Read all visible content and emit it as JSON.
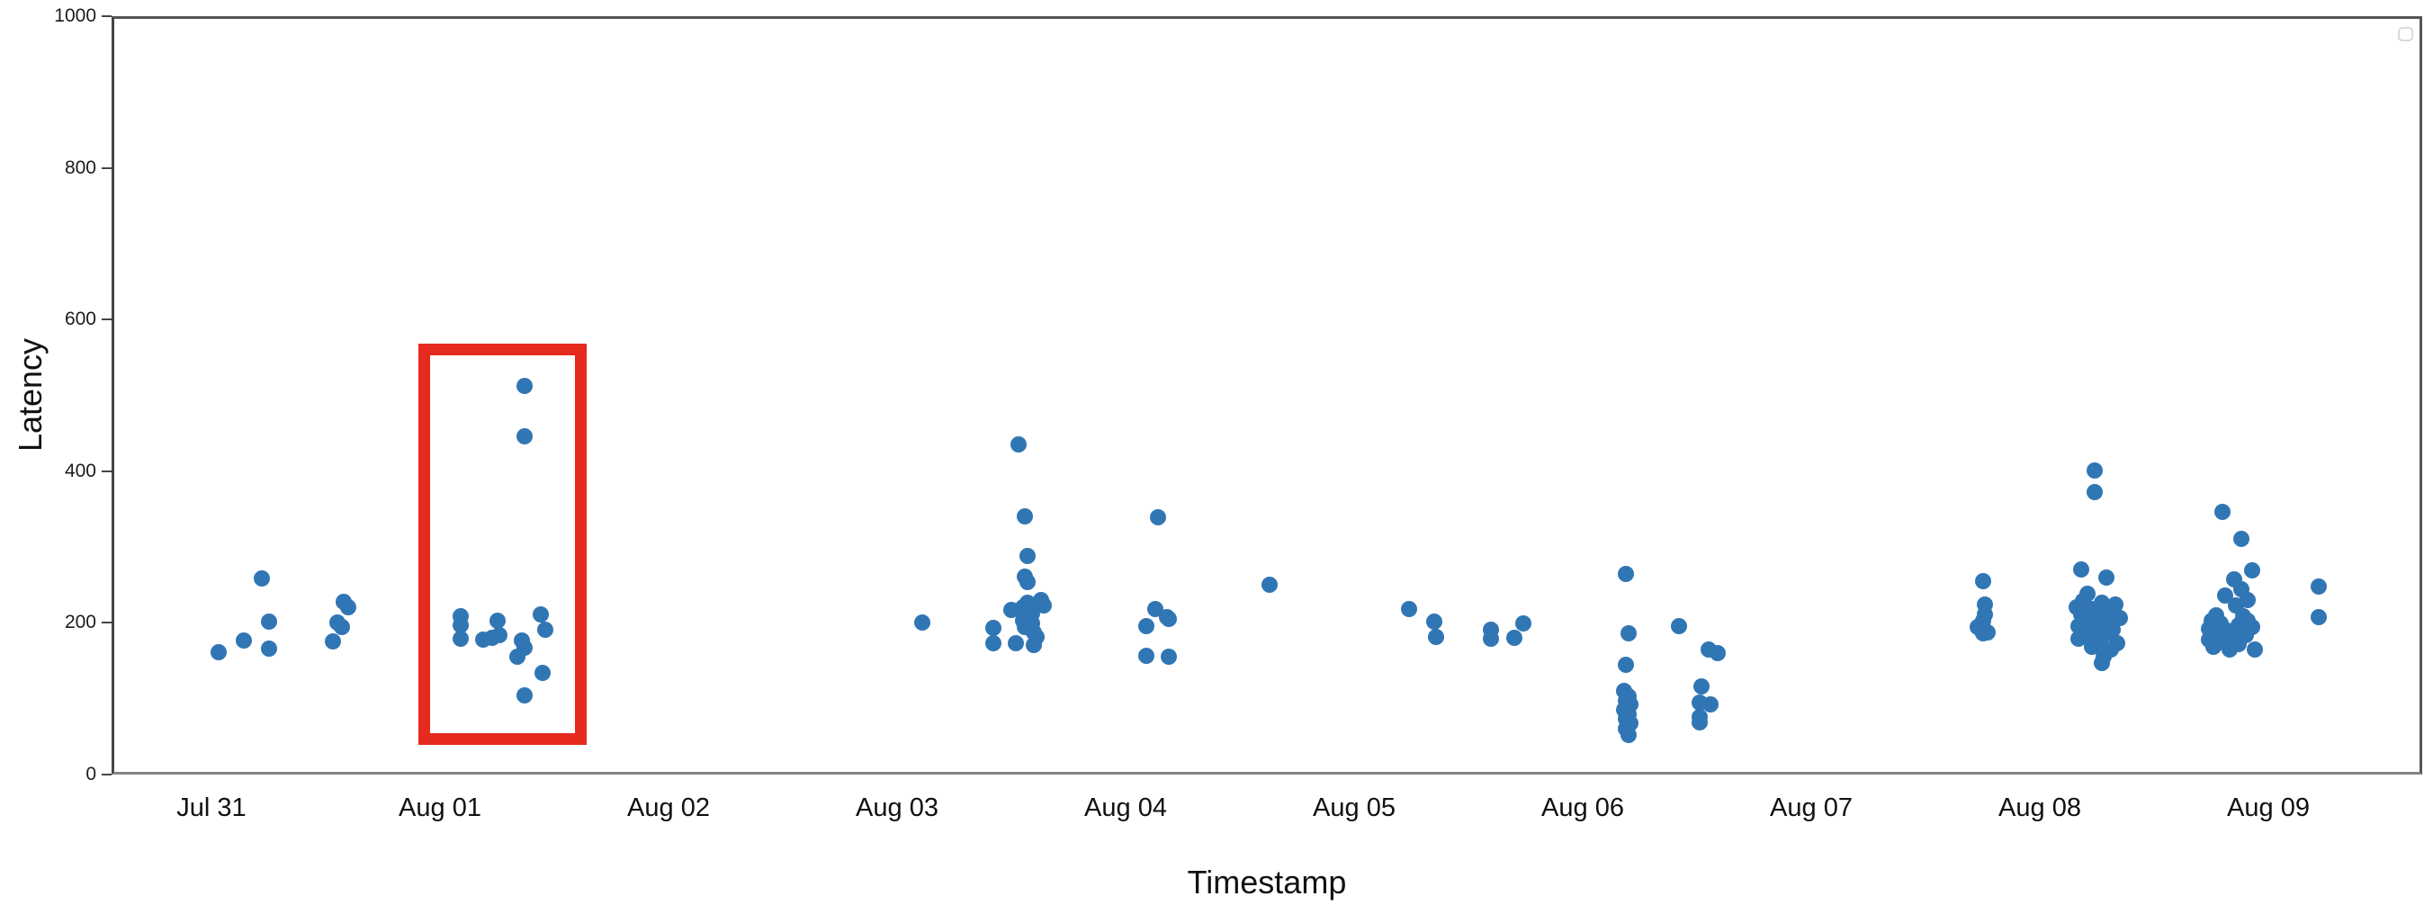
{
  "chart_data": {
    "type": "scatter",
    "title": "",
    "xlabel": "Timestamp",
    "ylabel": "Latency",
    "x_tick_labels": [
      "Jul 31",
      "Aug 01",
      "Aug 02",
      "Aug 03",
      "Aug 04",
      "Aug 05",
      "Aug 06",
      "Aug 07",
      "Aug 08",
      "Aug 09"
    ],
    "y_ticks": [
      0,
      200,
      400,
      600,
      800,
      1000
    ],
    "ylim": [
      0,
      1000
    ],
    "xlim_days_from_jul31": [
      -0.44,
      9.67
    ],
    "grid": "off",
    "legend": "empty box, upper right",
    "marker_color": "#3176b4",
    "highlight_color": "#e72a1e",
    "highlight_region": {
      "day_start": 0.905,
      "day_end": 1.64,
      "latency_min": 39,
      "latency_max": 568
    },
    "points_days_latency": [
      [
        0.03,
        161
      ],
      [
        0.14,
        177
      ],
      [
        0.22,
        259
      ],
      [
        0.25,
        202
      ],
      [
        0.25,
        166
      ],
      [
        0.53,
        176
      ],
      [
        0.55,
        200
      ],
      [
        0.57,
        195
      ],
      [
        0.58,
        228
      ],
      [
        0.6,
        221
      ],
      [
        1.37,
        512
      ],
      [
        1.37,
        446
      ],
      [
        1.09,
        209
      ],
      [
        1.09,
        197
      ],
      [
        1.09,
        179
      ],
      [
        1.19,
        178
      ],
      [
        1.23,
        180
      ],
      [
        1.25,
        203
      ],
      [
        1.26,
        184
      ],
      [
        1.36,
        177
      ],
      [
        1.37,
        167
      ],
      [
        1.34,
        155
      ],
      [
        1.44,
        211
      ],
      [
        1.46,
        191
      ],
      [
        1.45,
        134
      ],
      [
        1.37,
        104
      ],
      [
        3.11,
        200
      ],
      [
        3.53,
        435
      ],
      [
        3.56,
        340
      ],
      [
        3.57,
        288
      ],
      [
        3.56,
        261
      ],
      [
        3.57,
        254
      ],
      [
        3.63,
        230
      ],
      [
        3.64,
        223
      ],
      [
        3.57,
        227
      ],
      [
        3.55,
        221
      ],
      [
        3.5,
        217
      ],
      [
        3.59,
        212
      ],
      [
        3.55,
        203
      ],
      [
        3.59,
        199
      ],
      [
        3.56,
        195
      ],
      [
        3.6,
        187
      ],
      [
        3.61,
        181
      ],
      [
        3.42,
        193
      ],
      [
        3.42,
        173
      ],
      [
        3.52,
        173
      ],
      [
        3.6,
        171
      ],
      [
        4.14,
        339
      ],
      [
        4.13,
        218
      ],
      [
        4.18,
        208
      ],
      [
        4.19,
        205
      ],
      [
        4.09,
        196
      ],
      [
        4.09,
        157
      ],
      [
        4.19,
        155
      ],
      [
        4.63,
        250
      ],
      [
        5.24,
        218
      ],
      [
        5.35,
        202
      ],
      [
        5.36,
        181
      ],
      [
        5.6,
        191
      ],
      [
        5.6,
        179
      ],
      [
        5.7,
        180
      ],
      [
        5.74,
        199
      ],
      [
        6.19,
        265
      ],
      [
        6.2,
        186
      ],
      [
        6.19,
        145
      ],
      [
        6.18,
        110
      ],
      [
        6.2,
        103
      ],
      [
        6.19,
        97
      ],
      [
        6.21,
        92
      ],
      [
        6.18,
        86
      ],
      [
        6.2,
        80
      ],
      [
        6.19,
        74
      ],
      [
        6.21,
        68
      ],
      [
        6.19,
        60
      ],
      [
        6.2,
        52
      ],
      [
        6.42,
        196
      ],
      [
        6.55,
        165
      ],
      [
        6.59,
        160
      ],
      [
        6.52,
        116
      ],
      [
        6.51,
        95
      ],
      [
        6.56,
        93
      ],
      [
        6.51,
        76
      ],
      [
        6.51,
        69
      ],
      [
        7.75,
        255
      ],
      [
        7.76,
        224
      ],
      [
        7.76,
        211
      ],
      [
        7.75,
        203
      ],
      [
        7.73,
        195
      ],
      [
        7.77,
        187
      ],
      [
        7.75,
        186
      ],
      [
        8.24,
        401
      ],
      [
        8.24,
        373
      ],
      [
        8.18,
        270
      ],
      [
        8.29,
        260
      ],
      [
        8.21,
        238
      ],
      [
        8.19,
        229
      ],
      [
        8.27,
        227
      ],
      [
        8.33,
        224
      ],
      [
        8.16,
        221
      ],
      [
        8.23,
        218
      ],
      [
        8.31,
        216
      ],
      [
        8.18,
        211
      ],
      [
        8.26,
        209
      ],
      [
        8.35,
        206
      ],
      [
        8.2,
        203
      ],
      [
        8.29,
        200
      ],
      [
        8.17,
        196
      ],
      [
        8.24,
        193
      ],
      [
        8.32,
        191
      ],
      [
        8.21,
        186
      ],
      [
        8.28,
        184
      ],
      [
        8.17,
        179
      ],
      [
        8.26,
        176
      ],
      [
        8.34,
        173
      ],
      [
        8.23,
        168
      ],
      [
        8.31,
        165
      ],
      [
        8.28,
        155
      ],
      [
        8.27,
        147
      ],
      [
        8.8,
        346
      ],
      [
        8.88,
        311
      ],
      [
        8.93,
        269
      ],
      [
        8.85,
        258
      ],
      [
        8.88,
        244
      ],
      [
        8.81,
        236
      ],
      [
        8.91,
        230
      ],
      [
        8.86,
        223
      ],
      [
        8.77,
        210
      ],
      [
        8.89,
        209
      ],
      [
        8.91,
        203
      ],
      [
        8.75,
        203
      ],
      [
        8.79,
        199
      ],
      [
        8.87,
        197
      ],
      [
        8.93,
        194
      ],
      [
        8.74,
        192
      ],
      [
        8.82,
        190
      ],
      [
        8.78,
        185
      ],
      [
        8.9,
        184
      ],
      [
        8.85,
        180
      ],
      [
        8.74,
        178
      ],
      [
        8.8,
        174
      ],
      [
        8.87,
        172
      ],
      [
        8.76,
        168
      ],
      [
        8.83,
        165
      ],
      [
        8.94,
        165
      ],
      [
        9.22,
        248
      ],
      [
        9.22,
        207
      ]
    ]
  }
}
